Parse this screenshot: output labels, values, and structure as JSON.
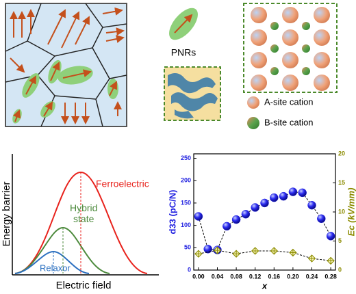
{
  "chart_data": {
    "type": "scatter",
    "xlabel": "x",
    "ylabel": "d33 (pC/N)",
    "y2label": "Ec (kV/mm)",
    "xlim": [
      -0.01,
      0.29
    ],
    "ylim": [
      0,
      260
    ],
    "y2lim": [
      0,
      20
    ],
    "xticks": [
      {
        "value": 0,
        "label": "0.00"
      },
      {
        "value": 0.04,
        "label": "0.04"
      },
      {
        "value": 0.08,
        "label": "0.08"
      },
      {
        "value": 0.12,
        "label": "0.12"
      },
      {
        "value": 0.16,
        "label": "0.16"
      },
      {
        "value": 0.2,
        "label": "0.20"
      },
      {
        "value": 0.24,
        "label": "0.24"
      },
      {
        "value": 0.28,
        "label": "0.28"
      }
    ],
    "yticks": [
      0,
      50,
      100,
      150,
      200,
      250
    ],
    "y2ticks": [
      0,
      5,
      10,
      15,
      20
    ],
    "series": [
      {
        "name": "d33",
        "color": "#1f1fe0",
        "marker": "sphere",
        "x": [
          0,
          0.02,
          0.04,
          0.06,
          0.08,
          0.1,
          0.12,
          0.14,
          0.16,
          0.18,
          0.2,
          0.22,
          0.24,
          0.26,
          0.28
        ],
        "values": [
          120,
          47,
          45,
          98,
          113,
          125,
          140,
          150,
          162,
          165,
          175,
          173,
          145,
          115,
          76
        ]
      },
      {
        "name": "Ec",
        "color": "#8b8b00",
        "marker": "diamond",
        "axis": "y2",
        "x": [
          0,
          0.04,
          0.08,
          0.12,
          0.16,
          0.2,
          0.24,
          0.28
        ],
        "values": [
          2.8,
          3.4,
          2.8,
          3.3,
          3.3,
          3.0,
          2.0,
          1.6
        ]
      }
    ]
  },
  "diagram": {
    "pnr_label": "PNRs",
    "legend": [
      "A-site cation",
      "B-site cation"
    ],
    "energy": {
      "ylabel": "Energy barrier",
      "xlabel": "Electric field",
      "ferroelectric": "Ferroelectric",
      "hybrid": "Hybrid\nstate",
      "relaxor": "Relaxor"
    }
  }
}
